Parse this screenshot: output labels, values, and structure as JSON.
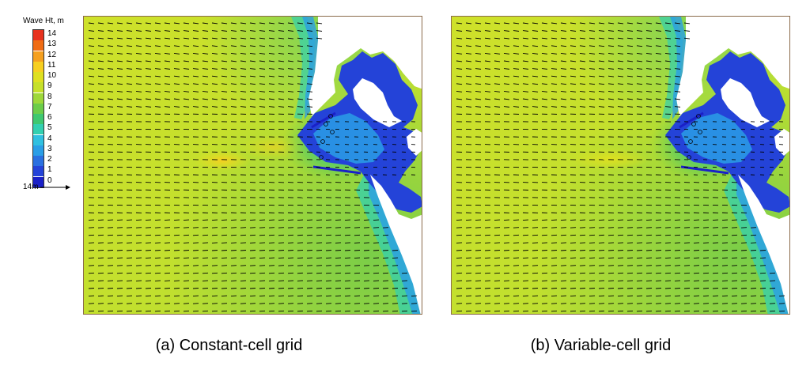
{
  "legend": {
    "title": "Wave Ht, m",
    "levels": [
      14,
      13,
      12,
      11,
      10,
      9,
      8,
      7,
      6,
      5,
      4,
      3,
      2,
      1,
      0
    ],
    "labels": [
      "14",
      "13",
      "12",
      "11",
      "10",
      "9",
      "8",
      "7",
      "6",
      "5",
      "4",
      "3",
      "2",
      "1",
      "0"
    ],
    "colors": [
      "#e8321e",
      "#f06c14",
      "#f5a020",
      "#f7cf20",
      "#dfe020",
      "#c6e02a",
      "#9ed83a",
      "#6ccd4a",
      "#3fc870",
      "#33d0b0",
      "#30c0e0",
      "#2a9ee6",
      "#2a70e0",
      "#2443d8",
      "#1a20c8"
    ]
  },
  "vector_scale": {
    "label": "14m",
    "value_m": 14
  },
  "chart_data": [
    {
      "type": "heatmap",
      "title": "(a) Constant-cell grid",
      "variable": "Wave Ht, m",
      "colorbar_range": [
        0,
        14
      ],
      "vectors": "wave direction arrows toward the east",
      "peak_wave_height_m": 11
    },
    {
      "type": "heatmap",
      "title": "(b) Variable-cell grid",
      "variable": "Wave Ht, m",
      "colorbar_range": [
        0,
        14
      ],
      "vectors": "wave direction arrows toward the east",
      "peak_wave_height_m": 10
    }
  ],
  "captions": {
    "a": "(a) Constant-cell grid",
    "b": "(b) Variable-cell grid"
  }
}
